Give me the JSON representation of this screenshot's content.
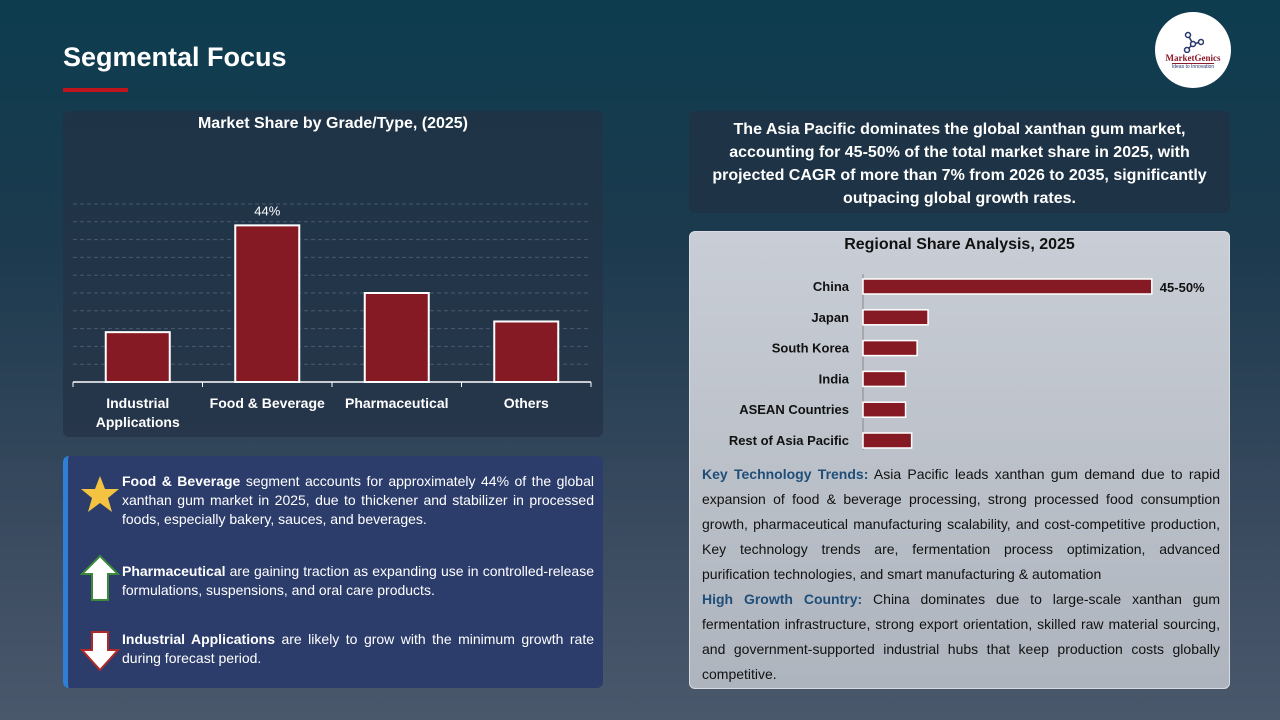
{
  "header": {
    "title": "Segmental Focus",
    "logo_text": "MarketGenics",
    "logo_tagline": "Ideas to Innovation"
  },
  "chart_data": [
    {
      "type": "bar",
      "title": "Market Share by Grade/Type, (2025)",
      "categories": [
        "Industrial Applications",
        "Food & Beverage",
        "Pharmaceutical",
        "Others"
      ],
      "values": [
        14,
        44,
        25,
        17
      ],
      "data_labels": [
        "",
        "44%",
        "",
        ""
      ],
      "ylim": [
        0,
        50
      ],
      "grid": true,
      "bar_color": "#861a24"
    },
    {
      "type": "bar",
      "orientation": "horizontal",
      "title": "Regional Share Analysis, 2025",
      "categories": [
        "China",
        "Japan",
        "South Korea",
        "India",
        "ASEAN Countries",
        "Rest of Asia Pacific"
      ],
      "values": [
        47.5,
        10.7,
        8.9,
        7,
        7,
        8
      ],
      "data_labels": [
        "45-50%",
        "",
        "",
        "",
        "",
        ""
      ],
      "bar_color": "#861a24"
    }
  ],
  "notes": [
    {
      "icon": "star-icon",
      "bold": "Food & Beverage",
      "text": " segment accounts for approximately 44% of the global xanthan gum  market in 2025, due to thickener and stabilizer in processed foods, especially bakery, sauces, and beverages."
    },
    {
      "icon": "arrow-up-icon",
      "bold": "Pharmaceutical",
      "text": " are gaining traction as expanding use in controlled-release formulations, suspensions, and oral care products."
    },
    {
      "icon": "arrow-down-icon",
      "bold": "Industrial Applications",
      "text": " are likely to grow with the minimum growth rate during forecast period."
    }
  ],
  "summary": "The Asia Pacific dominates the global xanthan gum  market, accounting for 45-50% of the total market share in 2025, with projected CAGR of more than 7% from 2026 to 2035, significantly outpacing global growth rates.",
  "insights": {
    "trends_label": "Key Technology Trends:",
    "trends_text": " Asia Pacific leads xanthan gum  demand due to rapid expansion of food & beverage processing, strong processed food consumption growth, pharmaceutical manufacturing scalability, and cost-competitive production, Key technology trends are, fermentation process optimization, advanced purification technologies, and smart manufacturing & automation",
    "country_label": "High Growth Country:",
    "country_text": " China dominates due to large-scale xanthan gum fermentation infrastructure, strong export orientation, skilled raw material sourcing, and government-supported industrial hubs that keep production costs globally competitive."
  }
}
